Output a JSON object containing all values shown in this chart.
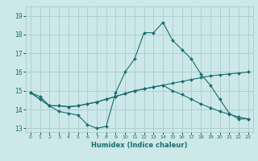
{
  "title": "",
  "xlabel": "Humidex (Indice chaleur)",
  "ylabel": "",
  "background_color": "#cce8e8",
  "grid_color": "#aacccc",
  "line_color": "#1a6e6e",
  "x_values": [
    0,
    1,
    2,
    3,
    4,
    5,
    6,
    7,
    8,
    9,
    10,
    11,
    12,
    13,
    14,
    15,
    16,
    17,
    18,
    19,
    20,
    21,
    22,
    23
  ],
  "line1": [
    14.9,
    14.7,
    14.2,
    13.9,
    13.8,
    13.7,
    13.2,
    13.0,
    13.1,
    14.9,
    16.0,
    16.7,
    18.1,
    18.1,
    18.65,
    17.7,
    17.2,
    16.7,
    15.9,
    15.3,
    14.55,
    13.8,
    13.5,
    13.5
  ],
  "line2": [
    14.9,
    14.55,
    14.2,
    14.2,
    14.15,
    14.2,
    14.3,
    14.4,
    14.55,
    14.7,
    14.85,
    15.0,
    15.1,
    15.2,
    15.3,
    15.4,
    15.5,
    15.6,
    15.7,
    15.8,
    15.85,
    15.9,
    15.95,
    16.0
  ],
  "line3": [
    14.9,
    14.55,
    14.2,
    14.2,
    14.15,
    14.2,
    14.3,
    14.4,
    14.55,
    14.7,
    14.85,
    15.0,
    15.1,
    15.2,
    15.3,
    15.0,
    14.8,
    14.55,
    14.3,
    14.1,
    13.9,
    13.75,
    13.6,
    13.5
  ],
  "ylim": [
    12.8,
    19.5
  ],
  "xlim": [
    -0.5,
    23.5
  ],
  "yticks": [
    13,
    14,
    15,
    16,
    17,
    18,
    19
  ],
  "xticks": [
    0,
    1,
    2,
    3,
    4,
    5,
    6,
    7,
    8,
    9,
    10,
    11,
    12,
    13,
    14,
    15,
    16,
    17,
    18,
    19,
    20,
    21,
    22,
    23
  ]
}
